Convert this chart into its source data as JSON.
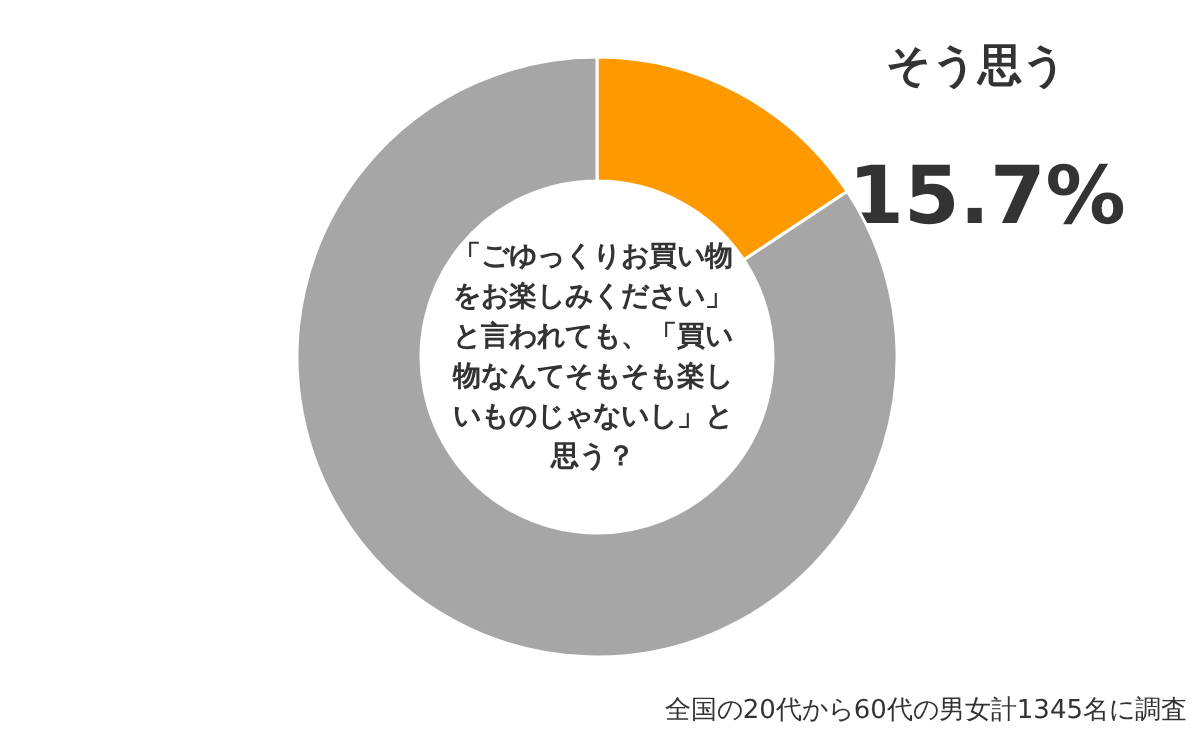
{
  "chart_data": {
    "type": "donut",
    "title": "「ごゆっくりお買い物をお楽しみください」と言われても、「買い物なんてそもそも楽しいものじゃないし」と思う？",
    "categories": [
      "そう思う",
      null
    ],
    "values": [
      15.7,
      84.3
    ],
    "colors": [
      "#ff9900",
      "#a6a6a6"
    ],
    "value_labels": [
      "15.7%",
      null
    ],
    "annotations": [
      "全国の20代から60代の男女計1345名に調査"
    ]
  }
}
